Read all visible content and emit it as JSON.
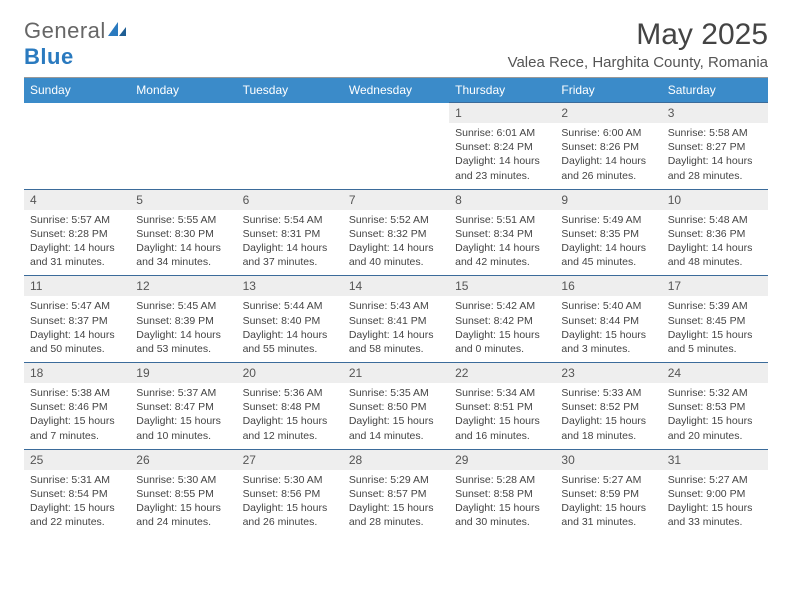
{
  "brand": {
    "part1": "General",
    "part2": "Blue"
  },
  "title": "May 2025",
  "location": "Valea Rece, Harghita County, Romania",
  "colors": {
    "header_bg": "#3b8bc9",
    "header_text": "#ffffff",
    "daynum_bg": "#eeeeee",
    "daynum_text": "#555555",
    "border": "#3b6b9a",
    "body_text": "#444444",
    "background": "#ffffff"
  },
  "typography": {
    "title_fontsize": 30,
    "location_fontsize": 15,
    "dow_fontsize": 12,
    "daynum_fontsize": 12,
    "body_fontsize": 10.5,
    "font_family": "Arial"
  },
  "days_of_week": [
    "Sunday",
    "Monday",
    "Tuesday",
    "Wednesday",
    "Thursday",
    "Friday",
    "Saturday"
  ],
  "weeks": [
    [
      null,
      null,
      null,
      null,
      {
        "n": "1",
        "sr": "Sunrise: 6:01 AM",
        "ss": "Sunset: 8:24 PM",
        "dl": "Daylight: 14 hours and 23 minutes."
      },
      {
        "n": "2",
        "sr": "Sunrise: 6:00 AM",
        "ss": "Sunset: 8:26 PM",
        "dl": "Daylight: 14 hours and 26 minutes."
      },
      {
        "n": "3",
        "sr": "Sunrise: 5:58 AM",
        "ss": "Sunset: 8:27 PM",
        "dl": "Daylight: 14 hours and 28 minutes."
      }
    ],
    [
      {
        "n": "4",
        "sr": "Sunrise: 5:57 AM",
        "ss": "Sunset: 8:28 PM",
        "dl": "Daylight: 14 hours and 31 minutes."
      },
      {
        "n": "5",
        "sr": "Sunrise: 5:55 AM",
        "ss": "Sunset: 8:30 PM",
        "dl": "Daylight: 14 hours and 34 minutes."
      },
      {
        "n": "6",
        "sr": "Sunrise: 5:54 AM",
        "ss": "Sunset: 8:31 PM",
        "dl": "Daylight: 14 hours and 37 minutes."
      },
      {
        "n": "7",
        "sr": "Sunrise: 5:52 AM",
        "ss": "Sunset: 8:32 PM",
        "dl": "Daylight: 14 hours and 40 minutes."
      },
      {
        "n": "8",
        "sr": "Sunrise: 5:51 AM",
        "ss": "Sunset: 8:34 PM",
        "dl": "Daylight: 14 hours and 42 minutes."
      },
      {
        "n": "9",
        "sr": "Sunrise: 5:49 AM",
        "ss": "Sunset: 8:35 PM",
        "dl": "Daylight: 14 hours and 45 minutes."
      },
      {
        "n": "10",
        "sr": "Sunrise: 5:48 AM",
        "ss": "Sunset: 8:36 PM",
        "dl": "Daylight: 14 hours and 48 minutes."
      }
    ],
    [
      {
        "n": "11",
        "sr": "Sunrise: 5:47 AM",
        "ss": "Sunset: 8:37 PM",
        "dl": "Daylight: 14 hours and 50 minutes."
      },
      {
        "n": "12",
        "sr": "Sunrise: 5:45 AM",
        "ss": "Sunset: 8:39 PM",
        "dl": "Daylight: 14 hours and 53 minutes."
      },
      {
        "n": "13",
        "sr": "Sunrise: 5:44 AM",
        "ss": "Sunset: 8:40 PM",
        "dl": "Daylight: 14 hours and 55 minutes."
      },
      {
        "n": "14",
        "sr": "Sunrise: 5:43 AM",
        "ss": "Sunset: 8:41 PM",
        "dl": "Daylight: 14 hours and 58 minutes."
      },
      {
        "n": "15",
        "sr": "Sunrise: 5:42 AM",
        "ss": "Sunset: 8:42 PM",
        "dl": "Daylight: 15 hours and 0 minutes."
      },
      {
        "n": "16",
        "sr": "Sunrise: 5:40 AM",
        "ss": "Sunset: 8:44 PM",
        "dl": "Daylight: 15 hours and 3 minutes."
      },
      {
        "n": "17",
        "sr": "Sunrise: 5:39 AM",
        "ss": "Sunset: 8:45 PM",
        "dl": "Daylight: 15 hours and 5 minutes."
      }
    ],
    [
      {
        "n": "18",
        "sr": "Sunrise: 5:38 AM",
        "ss": "Sunset: 8:46 PM",
        "dl": "Daylight: 15 hours and 7 minutes."
      },
      {
        "n": "19",
        "sr": "Sunrise: 5:37 AM",
        "ss": "Sunset: 8:47 PM",
        "dl": "Daylight: 15 hours and 10 minutes."
      },
      {
        "n": "20",
        "sr": "Sunrise: 5:36 AM",
        "ss": "Sunset: 8:48 PM",
        "dl": "Daylight: 15 hours and 12 minutes."
      },
      {
        "n": "21",
        "sr": "Sunrise: 5:35 AM",
        "ss": "Sunset: 8:50 PM",
        "dl": "Daylight: 15 hours and 14 minutes."
      },
      {
        "n": "22",
        "sr": "Sunrise: 5:34 AM",
        "ss": "Sunset: 8:51 PM",
        "dl": "Daylight: 15 hours and 16 minutes."
      },
      {
        "n": "23",
        "sr": "Sunrise: 5:33 AM",
        "ss": "Sunset: 8:52 PM",
        "dl": "Daylight: 15 hours and 18 minutes."
      },
      {
        "n": "24",
        "sr": "Sunrise: 5:32 AM",
        "ss": "Sunset: 8:53 PM",
        "dl": "Daylight: 15 hours and 20 minutes."
      }
    ],
    [
      {
        "n": "25",
        "sr": "Sunrise: 5:31 AM",
        "ss": "Sunset: 8:54 PM",
        "dl": "Daylight: 15 hours and 22 minutes."
      },
      {
        "n": "26",
        "sr": "Sunrise: 5:30 AM",
        "ss": "Sunset: 8:55 PM",
        "dl": "Daylight: 15 hours and 24 minutes."
      },
      {
        "n": "27",
        "sr": "Sunrise: 5:30 AM",
        "ss": "Sunset: 8:56 PM",
        "dl": "Daylight: 15 hours and 26 minutes."
      },
      {
        "n": "28",
        "sr": "Sunrise: 5:29 AM",
        "ss": "Sunset: 8:57 PM",
        "dl": "Daylight: 15 hours and 28 minutes."
      },
      {
        "n": "29",
        "sr": "Sunrise: 5:28 AM",
        "ss": "Sunset: 8:58 PM",
        "dl": "Daylight: 15 hours and 30 minutes."
      },
      {
        "n": "30",
        "sr": "Sunrise: 5:27 AM",
        "ss": "Sunset: 8:59 PM",
        "dl": "Daylight: 15 hours and 31 minutes."
      },
      {
        "n": "31",
        "sr": "Sunrise: 5:27 AM",
        "ss": "Sunset: 9:00 PM",
        "dl": "Daylight: 15 hours and 33 minutes."
      }
    ]
  ]
}
